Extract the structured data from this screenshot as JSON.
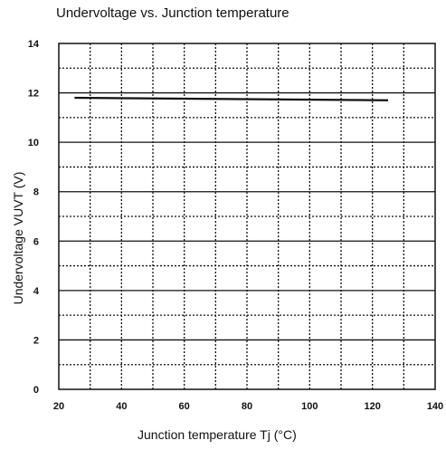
{
  "chart_data": {
    "type": "line",
    "title": "Undervoltage vs. Junction temperature",
    "xlabel": "Junction temperature  Tj (°C)",
    "ylabel": "Undervoltage  VUVT (V)",
    "xlim": [
      20,
      140
    ],
    "ylim": [
      0,
      14
    ],
    "x_ticks": [
      20,
      40,
      60,
      80,
      100,
      120,
      140
    ],
    "y_ticks": [
      0,
      2,
      4,
      6,
      8,
      10,
      12,
      14
    ],
    "grid": true,
    "series": [
      {
        "x": [
          25,
          125
        ],
        "values": [
          11.8,
          11.7
        ]
      }
    ]
  },
  "colors": {
    "line": "#111111",
    "grid": "#111111",
    "background": "#ffffff"
  }
}
